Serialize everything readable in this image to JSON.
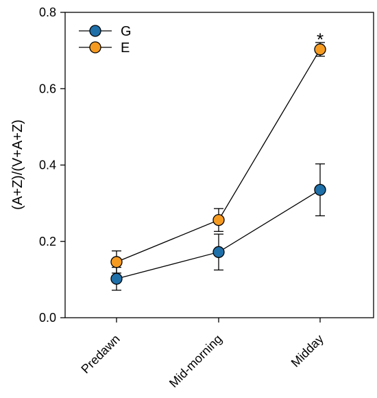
{
  "chart_data": {
    "type": "line",
    "title": "",
    "xlabel": "",
    "ylabel": "(A+Z)/(V+A+Z)",
    "categories": [
      "Predawn",
      "Mid-morning",
      "Midday"
    ],
    "ylim": [
      0,
      0.8
    ],
    "yticks": [
      "0.0",
      "0.2",
      "0.4",
      "0.6",
      "0.8"
    ],
    "series": [
      {
        "name": "G",
        "color": "#1f6fa8",
        "values": [
          0.102,
          0.172,
          0.335
        ],
        "errors": [
          0.03,
          0.047,
          0.068
        ]
      },
      {
        "name": "E",
        "color": "#f59b22",
        "values": [
          0.146,
          0.256,
          0.703
        ],
        "errors": [
          0.029,
          0.03,
          0.018
        ]
      }
    ],
    "annotations": [
      {
        "text": "*",
        "category": "Midday",
        "y": 0.745
      }
    ],
    "legend_position": "top-left",
    "grid": false
  }
}
